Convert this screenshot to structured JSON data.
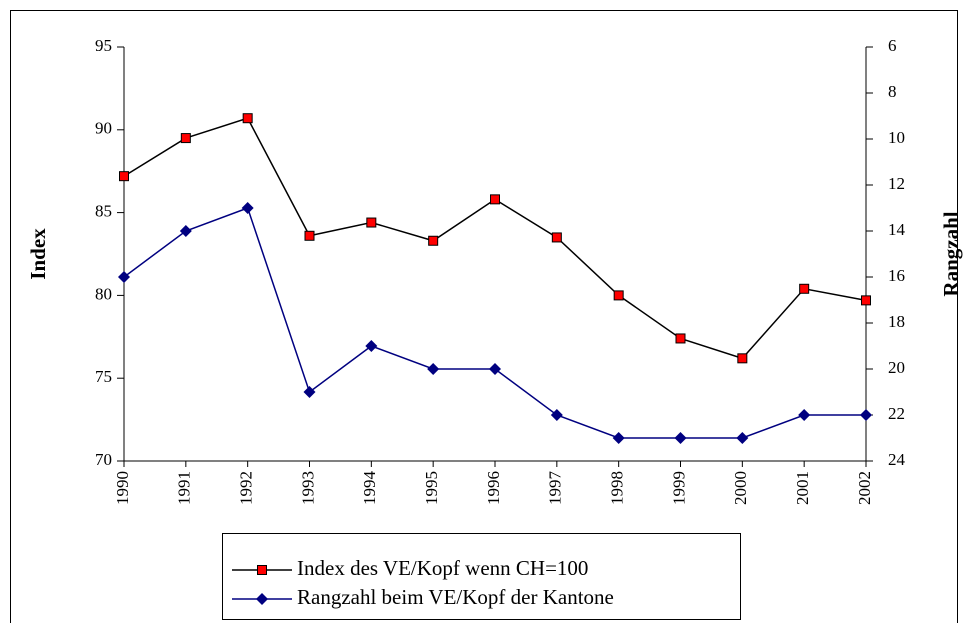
{
  "chart_data": {
    "type": "line",
    "categories": [
      "1990",
      "1991",
      "1992",
      "1993",
      "1994",
      "1995",
      "1996",
      "1997",
      "1998",
      "1999",
      "2000",
      "2001",
      "2002"
    ],
    "ylabel": "Index",
    "y2label": "Rangzahl",
    "ylim": [
      70,
      95
    ],
    "yticks": [
      70,
      75,
      80,
      85,
      90,
      95
    ],
    "y2lim": [
      24,
      6
    ],
    "y2ticks": [
      6,
      8,
      10,
      12,
      14,
      16,
      18,
      20,
      22,
      24
    ],
    "series": [
      {
        "name": "Index des VE/Kopf wenn CH=100",
        "color": "#000000",
        "marker_color": "#ff0000",
        "marker": "square",
        "values": [
          87.2,
          89.5,
          90.7,
          83.6,
          84.4,
          83.3,
          85.8,
          83.5,
          80.0,
          77.4,
          76.2,
          80.4,
          79.7
        ]
      },
      {
        "name": "Rangzahl beim VE/Kopf der Kantone",
        "color": "#000080",
        "marker_color": "#000080",
        "marker": "diamond",
        "axis": "y2",
        "values": [
          16,
          14,
          13,
          21,
          19,
          20,
          20,
          22,
          23,
          23,
          23,
          22,
          22
        ]
      }
    ],
    "legend": "bottom"
  }
}
